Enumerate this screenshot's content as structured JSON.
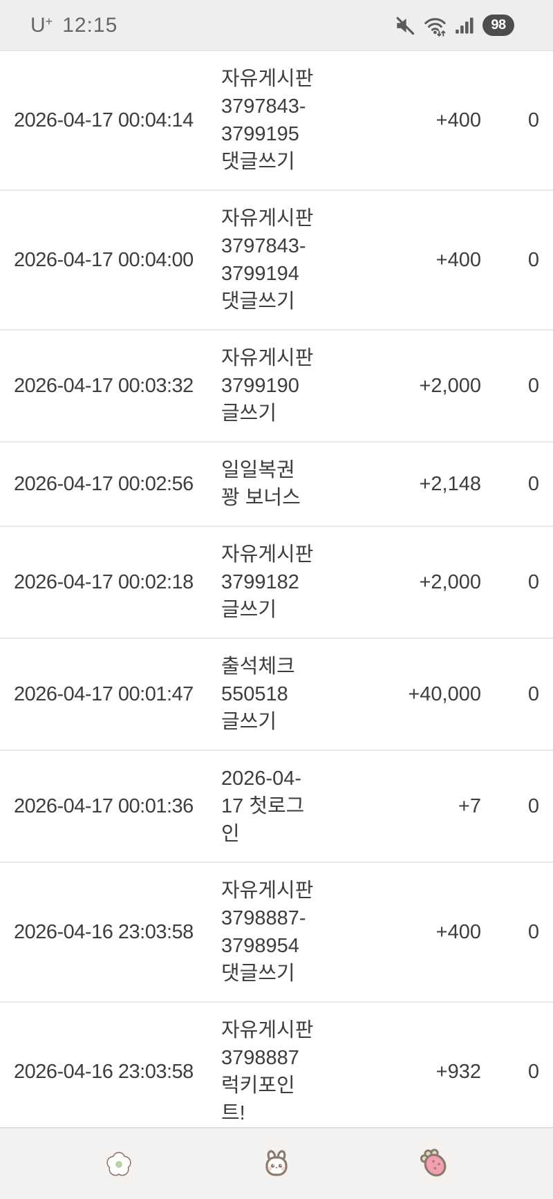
{
  "status_bar": {
    "carrier": "U",
    "carrier_sup": "+",
    "time": "12:15",
    "battery_percent": "98",
    "icons": [
      "mute-icon",
      "wifi-arrows-icon",
      "signal-strength-icon",
      "battery-pill"
    ]
  },
  "history": {
    "rows": [
      {
        "date": "2026-04-17 00:04:14",
        "description": "자유게시판 3797843-3799195 댓글쓰기",
        "desc_lines": [
          "자유게시판",
          "3797843-",
          "3799195",
          "댓글쓰기"
        ],
        "points": "+400",
        "balance": "0"
      },
      {
        "date": "2026-04-17 00:04:00",
        "description": "자유게시판 3797843-3799194 댓글쓰기",
        "desc_lines": [
          "자유게시판",
          "3797843-",
          "3799194",
          "댓글쓰기"
        ],
        "points": "+400",
        "balance": "0"
      },
      {
        "date": "2026-04-17 00:03:32",
        "description": "자유게시판 3799190 글쓰기",
        "desc_lines": [
          "자유게시판",
          "3799190",
          "글쓰기"
        ],
        "points": "+2,000",
        "balance": "0"
      },
      {
        "date": "2026-04-17 00:02:56",
        "description": "일일복권 꽝 보너스",
        "desc_lines": [
          "일일복권",
          "꽝 보너스"
        ],
        "points": "+2,148",
        "balance": "0"
      },
      {
        "date": "2026-04-17 00:02:18",
        "description": "자유게시판 3799182 글쓰기",
        "desc_lines": [
          "자유게시판",
          "3799182",
          "글쓰기"
        ],
        "points": "+2,000",
        "balance": "0"
      },
      {
        "date": "2026-04-17 00:01:47",
        "description": "출석체크 550518 글쓰기",
        "desc_lines": [
          "출석체크",
          "550518",
          "글쓰기"
        ],
        "points": "+40,000",
        "balance": "0"
      },
      {
        "date": "2026-04-17 00:01:36",
        "description": "2026-04-17 첫로그인",
        "desc_lines": [
          "2026-04-",
          "17 첫로그",
          "인"
        ],
        "points": "+7",
        "balance": "0"
      },
      {
        "date": "2026-04-16 23:03:58",
        "description": "자유게시판 3798887-3798954 댓글쓰기",
        "desc_lines": [
          "자유게시판",
          "3798887-",
          "3798954",
          "댓글쓰기"
        ],
        "points": "+400",
        "balance": "0"
      },
      {
        "date": "2026-04-16 23:03:58",
        "description": "자유게시판 3798887 럭키포인트!",
        "desc_lines": [
          "자유게시판",
          "3798887",
          "럭키포인",
          "트!"
        ],
        "points": "+932",
        "balance": "0"
      }
    ]
  },
  "tab_bar": {
    "items": [
      {
        "icon": "flower-icon"
      },
      {
        "icon": "rabbit-icon"
      },
      {
        "icon": "strawberry-icon"
      }
    ]
  },
  "colors": {
    "status_bar_bg": "#f0eeec",
    "status_text": "#666665",
    "battery_pill_bg": "#4d4d4d",
    "row_text": "#3d3d3d",
    "divider": "#eae8e6",
    "tab_bar_bg": "#f4f2f0",
    "icon_outline_brown": "#8d7a6c",
    "flower_center_green": "#b8d3a6",
    "strawberry_pink": "#f2a0b1",
    "strawberry_dot": "#b9776f",
    "leaf_green": "#cfe2bc",
    "cheek_pink": "#f7d0cf"
  }
}
